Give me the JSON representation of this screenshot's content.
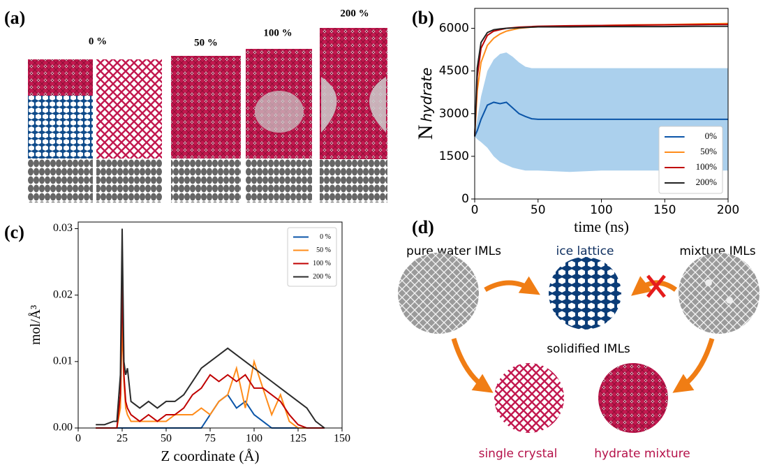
{
  "panel_a": {
    "label": "(a)",
    "columns": [
      "0 %",
      "50 %",
      "100 %",
      "200 %"
    ]
  },
  "chart_data": [
    {
      "type": "line",
      "panel_label": "(b)",
      "y_label": "N",
      "y_label_sub": "hydrate",
      "x_label": "time (ns)",
      "x": [
        0,
        2,
        5,
        10,
        15,
        20,
        25,
        30,
        35,
        40,
        45,
        50,
        75,
        100,
        125,
        150,
        175,
        200
      ],
      "xlim": [
        0,
        200
      ],
      "xticks": [
        0,
        50,
        100,
        150,
        200
      ],
      "ylim": [
        0,
        6700
      ],
      "yticks": [
        0,
        1500,
        3000,
        4500,
        6000
      ],
      "grid": false,
      "legend": "lower right",
      "series": [
        {
          "name": "0%",
          "color": "#0b55a8",
          "band_color": "#9cc8ea",
          "values": [
            2200,
            2400,
            2800,
            3300,
            3400,
            3350,
            3400,
            3200,
            3000,
            2900,
            2820,
            2800,
            2800,
            2800,
            2800,
            2800,
            2800,
            2800
          ],
          "upper": [
            2200,
            2800,
            3600,
            4500,
            4900,
            5100,
            5150,
            5000,
            4800,
            4650,
            4600,
            4600,
            4600,
            4600,
            4600,
            4600,
            4600,
            4600
          ],
          "lower": [
            2200,
            2100,
            2000,
            1800,
            1500,
            1300,
            1200,
            1100,
            1050,
            1000,
            1000,
            1000,
            950,
            1000,
            1000,
            1000,
            1000,
            1000
          ]
        },
        {
          "name": "50%",
          "color": "#ff8c1a",
          "values": [
            2200,
            3800,
            4800,
            5400,
            5650,
            5800,
            5900,
            5950,
            6000,
            6020,
            6040,
            6050,
            6080,
            6100,
            6120,
            6130,
            6150,
            6170
          ]
        },
        {
          "name": "100%",
          "color": "#c00000",
          "values": [
            2200,
            4300,
            5300,
            5750,
            5900,
            5950,
            6000,
            6020,
            6040,
            6050,
            6060,
            6070,
            6090,
            6100,
            6110,
            6120,
            6130,
            6140
          ]
        },
        {
          "name": "200%",
          "color": "#222222",
          "values": [
            2200,
            4600,
            5500,
            5850,
            5950,
            5980,
            6000,
            6010,
            6020,
            6030,
            6040,
            6050,
            6050,
            6060,
            6060,
            6060,
            6070,
            6070
          ]
        }
      ]
    },
    {
      "type": "line",
      "panel_label": "(c)",
      "y_label": "mol/Å³",
      "x_label": "Z coordinate (Å)",
      "x": [
        10,
        15,
        20,
        22,
        24,
        25,
        26,
        27,
        28,
        30,
        35,
        40,
        45,
        50,
        55,
        60,
        65,
        70,
        75,
        80,
        85,
        90,
        95,
        100,
        105,
        110,
        115,
        120,
        125,
        130,
        135,
        140
      ],
      "xlim": [
        0,
        150
      ],
      "xticks": [
        0,
        25,
        50,
        75,
        100,
        125,
        150
      ],
      "ylim": [
        0,
        0.031
      ],
      "yticks": [
        {
          "value": 0,
          "label": "0.00"
        },
        0.01,
        0.02,
        0.03
      ],
      "grid": false,
      "legend": "upper right",
      "series": [
        {
          "name": "0 %",
          "color": "#0b55a8",
          "values": [
            0,
            0,
            0,
            0,
            0,
            0,
            0,
            0,
            0,
            0,
            0,
            0,
            0,
            0,
            0,
            0,
            0,
            0,
            0.002,
            0.004,
            0.005,
            0.003,
            0.004,
            0.002,
            0.001,
            0,
            0,
            0,
            0,
            0,
            0,
            0
          ]
        },
        {
          "name": "50 %",
          "color": "#ff8c1a",
          "values": [
            0,
            0,
            0,
            0,
            0.003,
            0.016,
            0.007,
            0.003,
            0.002,
            0.001,
            0.001,
            0.001,
            0.001,
            0.001,
            0.002,
            0.002,
            0.002,
            0.003,
            0.002,
            0.004,
            0.005,
            0.009,
            0.003,
            0.01,
            0.006,
            0.002,
            0.005,
            0.001,
            0,
            0,
            0,
            0
          ]
        },
        {
          "name": "100 %",
          "color": "#c00000",
          "values": [
            0,
            0,
            0,
            0,
            0.005,
            0.022,
            0.008,
            0.004,
            0.003,
            0.002,
            0.001,
            0.002,
            0.001,
            0.002,
            0.002,
            0.003,
            0.005,
            0.006,
            0.008,
            0.007,
            0.008,
            0.007,
            0.008,
            0.006,
            0.006,
            0.005,
            0.004,
            0.002,
            0.0005,
            0,
            0,
            0
          ]
        },
        {
          "name": "200 %",
          "color": "#2b2b2b",
          "values": [
            0.0005,
            0.0005,
            0.001,
            0.001,
            0.008,
            0.03,
            0.01,
            0.008,
            0.009,
            0.004,
            0.003,
            0.004,
            0.003,
            0.004,
            0.004,
            0.005,
            0.007,
            0.009,
            0.01,
            0.011,
            0.012,
            0.011,
            0.01,
            0.009,
            0.008,
            0.007,
            0.006,
            0.005,
            0.004,
            0.003,
            0.001,
            0
          ]
        }
      ]
    }
  ],
  "panel_d": {
    "label": "(d)",
    "pure_water": "pure water IMLs",
    "ice_lattice": "ice lattice",
    "mixture": "mixture IMLs",
    "solidified": "solidified IMLs",
    "single_crystal": "single crystal",
    "hydrate_mixture": "hydrate mixture"
  }
}
